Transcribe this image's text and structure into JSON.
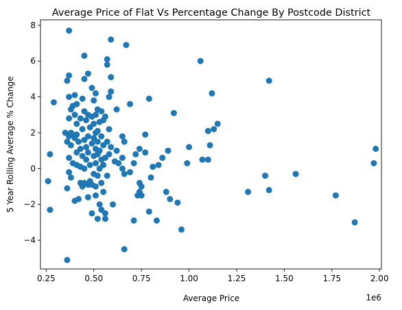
{
  "chart_data": {
    "type": "scatter",
    "title": "Average Price of Flat Vs Percentage Change By Postcode District",
    "xlabel": "Average Price",
    "ylabel": "5 Year Rolling Average % Change",
    "x_offset_label": "1e6",
    "x_scale": 1000000,
    "xlim": [
      0.22,
      2.01
    ],
    "ylim": [
      -5.6,
      8.3
    ],
    "x_ticks": [
      0.25,
      0.5,
      0.75,
      1.0,
      1.25,
      1.5,
      1.75,
      2.0
    ],
    "x_tick_labels": [
      "0.25",
      "0.50",
      "0.75",
      "1.00",
      "1.25",
      "1.50",
      "1.75",
      "2.00"
    ],
    "y_ticks": [
      -4,
      -2,
      0,
      2,
      4,
      6,
      8
    ],
    "y_tick_labels": [
      "−4",
      "−2",
      "0",
      "2",
      "4",
      "6",
      "8"
    ],
    "grid": false,
    "marker_color": "#1f77b4",
    "points": [
      [
        0.26,
        -0.7
      ],
      [
        0.27,
        -2.3
      ],
      [
        0.27,
        0.8
      ],
      [
        0.29,
        3.7
      ],
      [
        0.35,
        2.0
      ],
      [
        0.36,
        4.9
      ],
      [
        0.36,
        1.5
      ],
      [
        0.36,
        -1.1
      ],
      [
        0.36,
        -5.1
      ],
      [
        0.37,
        7.7
      ],
      [
        0.37,
        5.2
      ],
      [
        0.37,
        4.0
      ],
      [
        0.37,
        2.8
      ],
      [
        0.37,
        1.8
      ],
      [
        0.37,
        0.6
      ],
      [
        0.37,
        -0.2
      ],
      [
        0.38,
        3.3
      ],
      [
        0.38,
        2.0
      ],
      [
        0.38,
        1.3
      ],
      [
        0.38,
        -0.5
      ],
      [
        0.39,
        3.5
      ],
      [
        0.39,
        1.9
      ],
      [
        0.39,
        0.3
      ],
      [
        0.4,
        4.1
      ],
      [
        0.4,
        3.0
      ],
      [
        0.4,
        1.7
      ],
      [
        0.4,
        -1.8
      ],
      [
        0.41,
        3.6
      ],
      [
        0.41,
        2.5
      ],
      [
        0.41,
        1.9
      ],
      [
        0.41,
        0.9
      ],
      [
        0.41,
        0.2
      ],
      [
        0.42,
        1.5
      ],
      [
        0.42,
        -1.7
      ],
      [
        0.43,
        2.8
      ],
      [
        0.43,
        1.1
      ],
      [
        0.43,
        0.1
      ],
      [
        0.43,
        -0.8
      ],
      [
        0.44,
        3.9
      ],
      [
        0.44,
        2.2
      ],
      [
        0.44,
        0.7
      ],
      [
        0.44,
        -1.0
      ],
      [
        0.45,
        6.3
      ],
      [
        0.45,
        5.0
      ],
      [
        0.45,
        3.2
      ],
      [
        0.45,
        1.6
      ],
      [
        0.45,
        0.0
      ],
      [
        0.45,
        -0.8
      ],
      [
        0.46,
        2.7
      ],
      [
        0.46,
        1.2
      ],
      [
        0.46,
        0.5
      ],
      [
        0.47,
        5.3
      ],
      [
        0.47,
        3.0
      ],
      [
        0.47,
        1.8
      ],
      [
        0.47,
        0.9
      ],
      [
        0.47,
        -0.9
      ],
      [
        0.47,
        -1.6
      ],
      [
        0.48,
        2.3
      ],
      [
        0.48,
        0.2
      ],
      [
        0.48,
        -0.7
      ],
      [
        0.49,
        4.5
      ],
      [
        0.49,
        2.9
      ],
      [
        0.49,
        1.4
      ],
      [
        0.49,
        -0.9
      ],
      [
        0.49,
        -2.5
      ],
      [
        0.5,
        3.8
      ],
      [
        0.5,
        2.5
      ],
      [
        0.5,
        1.7
      ],
      [
        0.5,
        0.7
      ],
      [
        0.5,
        -0.3
      ],
      [
        0.51,
        4.2
      ],
      [
        0.51,
        3.0
      ],
      [
        0.51,
        2.0
      ],
      [
        0.51,
        1.1
      ],
      [
        0.51,
        0.3
      ],
      [
        0.51,
        -1.0
      ],
      [
        0.51,
        -1.5
      ],
      [
        0.52,
        3.3
      ],
      [
        0.52,
        2.1
      ],
      [
        0.52,
        1.5
      ],
      [
        0.52,
        0.8
      ],
      [
        0.52,
        -0.4
      ],
      [
        0.52,
        -2.8
      ],
      [
        0.53,
        2.6
      ],
      [
        0.53,
        1.0
      ],
      [
        0.53,
        0.0
      ],
      [
        0.53,
        -2.0
      ],
      [
        0.54,
        3.2
      ],
      [
        0.54,
        1.8
      ],
      [
        0.54,
        0.5
      ],
      [
        0.54,
        -0.8
      ],
      [
        0.54,
        -2.3
      ],
      [
        0.55,
        2.7
      ],
      [
        0.55,
        1.3
      ],
      [
        0.55,
        0.2
      ],
      [
        0.55,
        -1.3
      ],
      [
        0.56,
        2.9
      ],
      [
        0.56,
        0.6
      ],
      [
        0.56,
        -2.5
      ],
      [
        0.56,
        -2.8
      ],
      [
        0.57,
        6.1
      ],
      [
        0.57,
        5.8
      ],
      [
        0.57,
        1.5
      ],
      [
        0.57,
        -0.4
      ],
      [
        0.58,
        4.0
      ],
      [
        0.58,
        2.2
      ],
      [
        0.58,
        0.8
      ],
      [
        0.59,
        7.2
      ],
      [
        0.59,
        5.1
      ],
      [
        0.59,
        4.3
      ],
      [
        0.59,
        1.2
      ],
      [
        0.6,
        -2.0
      ],
      [
        0.61,
        0.4
      ],
      [
        0.62,
        3.3
      ],
      [
        0.62,
        1.0
      ],
      [
        0.63,
        0.3
      ],
      [
        0.65,
        1.8
      ],
      [
        0.65,
        0.6
      ],
      [
        0.65,
        0.0
      ],
      [
        0.66,
        1.5
      ],
      [
        0.66,
        -0.3
      ],
      [
        0.66,
        -4.5
      ],
      [
        0.67,
        6.9
      ],
      [
        0.69,
        3.6
      ],
      [
        0.69,
        -0.2
      ],
      [
        0.71,
        0.3
      ],
      [
        0.71,
        -2.9
      ],
      [
        0.72,
        0.8
      ],
      [
        0.73,
        -1.5
      ],
      [
        0.74,
        1.1
      ],
      [
        0.74,
        -0.8
      ],
      [
        0.74,
        -1.3
      ],
      [
        0.75,
        -1.0
      ],
      [
        0.75,
        -1.5
      ],
      [
        0.77,
        1.9
      ],
      [
        0.77,
        0.9
      ],
      [
        0.79,
        3.9
      ],
      [
        0.79,
        -2.4
      ],
      [
        0.8,
        -0.5
      ],
      [
        0.81,
        0.1
      ],
      [
        0.83,
        -2.9
      ],
      [
        0.84,
        0.2
      ],
      [
        0.86,
        0.6
      ],
      [
        0.88,
        -1.3
      ],
      [
        0.89,
        1.0
      ],
      [
        0.9,
        -1.7
      ],
      [
        0.92,
        3.1
      ],
      [
        0.94,
        -1.9
      ],
      [
        0.96,
        -3.4
      ],
      [
        0.99,
        0.3
      ],
      [
        1.0,
        1.2
      ],
      [
        1.06,
        6.0
      ],
      [
        1.07,
        0.5
      ],
      [
        1.1,
        0.5
      ],
      [
        1.1,
        2.1
      ],
      [
        1.11,
        1.3
      ],
      [
        1.12,
        4.2
      ],
      [
        1.13,
        2.2
      ],
      [
        1.15,
        2.5
      ],
      [
        1.31,
        -1.3
      ],
      [
        1.4,
        -0.4
      ],
      [
        1.42,
        4.9
      ],
      [
        1.42,
        -1.2
      ],
      [
        1.56,
        -0.3
      ],
      [
        1.77,
        -1.5
      ],
      [
        1.87,
        -3.0
      ],
      [
        1.97,
        0.3
      ],
      [
        1.98,
        1.1
      ]
    ]
  }
}
